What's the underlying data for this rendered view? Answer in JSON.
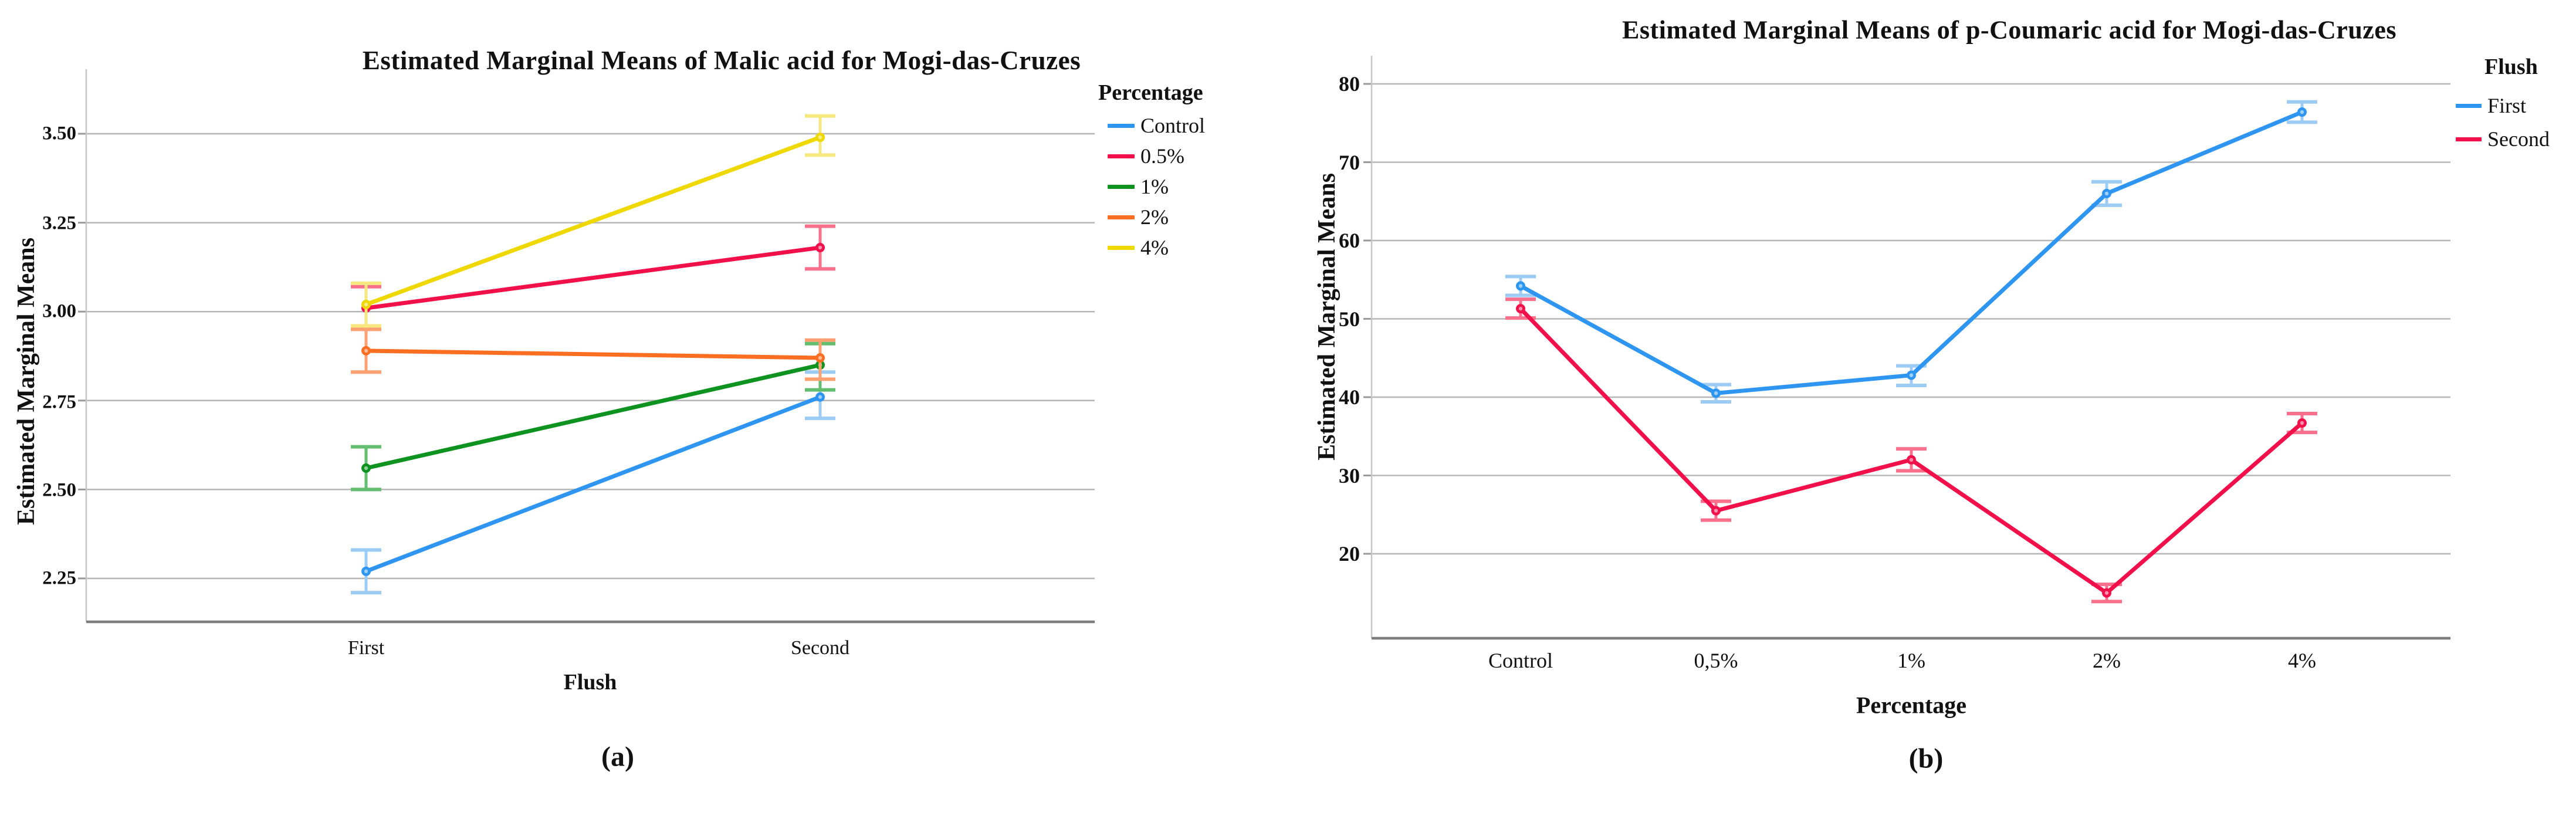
{
  "figure": {
    "panel_a_tag": "(a)",
    "panel_b_tag": "(b)",
    "background": "#ffffff",
    "grid_color": "#b6b6b6",
    "axis_line_color": "#c6c6c6",
    "baseline_color": "#7d7d7d",
    "tick_mark_color": "#9a9a9a"
  },
  "chart_data": [
    {
      "type": "line",
      "panel": "a",
      "title": "Estimated Marginal Means of Malic acid for Mogi-das-Cruzes",
      "xlabel": "Flush",
      "ylabel": "Estimated Marginal Means",
      "categories": [
        "First",
        "Second"
      ],
      "ytick_labels": [
        "3.50",
        "3.25",
        "3.00",
        "2.75",
        "2.50",
        "2.25"
      ],
      "ytick_values": [
        3.5,
        3.25,
        3.0,
        2.75,
        2.5,
        2.25
      ],
      "ylim": [
        2.14,
        3.68
      ],
      "grid": true,
      "legend_title": "Percentage",
      "legend_position": "right-top",
      "error_bars": true,
      "series": [
        {
          "name": "Control",
          "color": "#2E96F0",
          "err_color": "#9CCBF4",
          "values": [
            2.27,
            2.76
          ],
          "err_low": [
            2.21,
            2.7
          ],
          "err_high": [
            2.33,
            2.83
          ]
        },
        {
          "name": "0.5%",
          "color": "#F2104A",
          "err_color": "#F8708C",
          "values": [
            3.01,
            3.18
          ],
          "err_low": [
            2.95,
            3.12
          ],
          "err_high": [
            3.07,
            3.24
          ]
        },
        {
          "name": "1%",
          "color": "#0E9320",
          "err_color": "#63BE70",
          "values": [
            2.56,
            2.85
          ],
          "err_low": [
            2.5,
            2.78
          ],
          "err_high": [
            2.62,
            2.91
          ]
        },
        {
          "name": "2%",
          "color": "#FC6E22",
          "err_color": "#FDA173",
          "values": [
            2.89,
            2.87
          ],
          "err_low": [
            2.83,
            2.81
          ],
          "err_high": [
            2.95,
            2.92
          ]
        },
        {
          "name": "4%",
          "color": "#EFD800",
          "err_color": "#F4E87E",
          "values": [
            3.02,
            3.49
          ],
          "err_low": [
            2.96,
            3.44
          ],
          "err_high": [
            3.08,
            3.55
          ]
        }
      ]
    },
    {
      "type": "line",
      "panel": "b",
      "title": "Estimated Marginal Means of p-Coumaric acid for Mogi-das-Cruzes",
      "xlabel": "Percentage",
      "ylabel": "Estimated Marginal Means",
      "categories": [
        "Control",
        "0,5%",
        "1%",
        "2%",
        "4%"
      ],
      "ytick_labels": [
        "80",
        "70",
        "60",
        "50",
        "40",
        "30",
        "20"
      ],
      "ytick_values": [
        80,
        70,
        60,
        50,
        40,
        30,
        20
      ],
      "ylim": [
        9,
        83.5
      ],
      "grid": true,
      "legend_title": "Flush",
      "legend_position": "right-top",
      "error_bars": true,
      "series": [
        {
          "name": "First",
          "color": "#2E96F0",
          "err_color": "#9CCBF4",
          "values": [
            54.2,
            40.5,
            42.8,
            66.0,
            76.4
          ],
          "err_low": [
            53.0,
            39.4,
            41.5,
            64.5,
            75.1
          ],
          "err_high": [
            55.4,
            41.6,
            44.0,
            67.5,
            77.7
          ]
        },
        {
          "name": "Second",
          "color": "#F2104A",
          "err_color": "#F8708C",
          "values": [
            51.3,
            25.5,
            32.0,
            15.0,
            36.7
          ],
          "err_low": [
            50.1,
            24.3,
            30.6,
            13.9,
            35.5
          ],
          "err_high": [
            52.5,
            26.7,
            33.4,
            16.1,
            37.9
          ]
        }
      ]
    }
  ]
}
